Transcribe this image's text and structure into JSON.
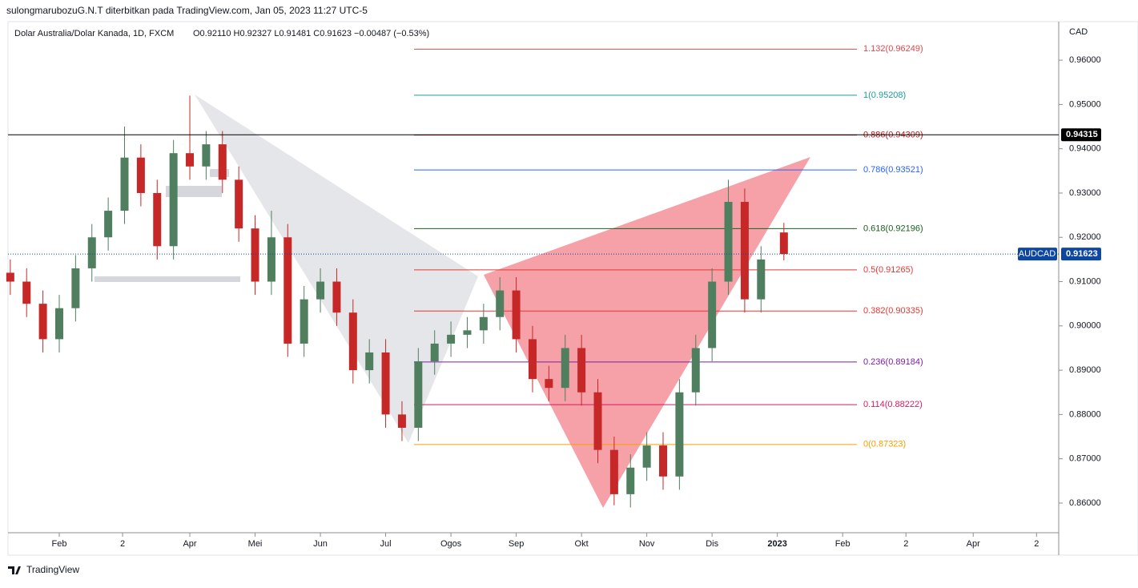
{
  "header": {
    "publisher": "sulongmarubozuG.N.T diterbitkan pada TradingView.com, Jan 05, 2023 11:27 UTC-5",
    "brand": "TradingView"
  },
  "chart_data": {
    "type": "candlestick",
    "symbol_title": "Dolar Australia/Dolar Kanada, 1D, FXCM",
    "ohlc_legend": "O0.92110 H0.92327 L0.91481 C0.91623 −0.00487 (−0.53%)",
    "currency": "CAD",
    "up_color": "#4f7f5f",
    "down_color": "#c62828",
    "ylim": [
      0.8533,
      0.9687
    ],
    "yticks": [
      {
        "value": 0.86,
        "label": "0.86000"
      },
      {
        "value": 0.87,
        "label": "0.87000"
      },
      {
        "value": 0.88,
        "label": "0.88000"
      },
      {
        "value": 0.89,
        "label": "0.89000"
      },
      {
        "value": 0.9,
        "label": "0.90000"
      },
      {
        "value": 0.91,
        "label": "0.91000"
      },
      {
        "value": 0.92,
        "label": "0.92000"
      },
      {
        "value": 0.93,
        "label": "0.93000"
      },
      {
        "value": 0.94,
        "label": "0.94000"
      },
      {
        "value": 0.95,
        "label": "0.95000"
      },
      {
        "value": 0.96,
        "label": "0.96000"
      }
    ],
    "xlim": [
      0.215,
      16.31
    ],
    "xticks": [
      {
        "value": 1,
        "label": "Feb"
      },
      {
        "value": 1.97,
        "label": "2"
      },
      {
        "value": 3,
        "label": "Apr"
      },
      {
        "value": 4,
        "label": "Mei"
      },
      {
        "value": 5,
        "label": "Jun"
      },
      {
        "value": 6,
        "label": "Jul"
      },
      {
        "value": 7,
        "label": "Ogos"
      },
      {
        "value": 8,
        "label": "Sep"
      },
      {
        "value": 9,
        "label": "Okt"
      },
      {
        "value": 10,
        "label": "Nov"
      },
      {
        "value": 11,
        "label": "Dis"
      },
      {
        "value": 12,
        "label": "2023"
      },
      {
        "value": 13,
        "label": "Feb"
      },
      {
        "value": 13.97,
        "label": "2"
      },
      {
        "value": 15,
        "label": "Apr"
      },
      {
        "value": 15.97,
        "label": "2"
      }
    ],
    "candles": {
      "x": [
        0.25,
        0.5,
        0.75,
        1,
        1.25,
        1.5,
        1.75,
        2,
        2.25,
        2.5,
        2.75,
        3,
        3.25,
        3.5,
        3.75,
        4,
        4.25,
        4.5,
        4.75,
        5,
        5.25,
        5.5,
        5.75,
        6,
        6.25,
        6.5,
        6.75,
        7,
        7.25,
        7.5,
        7.75,
        8,
        8.25,
        8.5,
        8.75,
        9,
        9.25,
        9.5,
        9.75,
        10,
        10.25,
        10.5,
        10.75,
        11,
        11.25,
        11.5,
        11.75,
        12.1
      ],
      "open": [
        0.912,
        0.91,
        0.905,
        0.897,
        0.904,
        0.913,
        0.92,
        0.926,
        0.938,
        0.93,
        0.918,
        0.939,
        0.936,
        0.941,
        0.933,
        0.922,
        0.91,
        0.92,
        0.896,
        0.906,
        0.91,
        0.903,
        0.89,
        0.894,
        0.88,
        0.877,
        0.892,
        0.896,
        0.898,
        0.899,
        0.902,
        0.908,
        0.897,
        0.888,
        0.886,
        0.895,
        0.885,
        0.872,
        0.862,
        0.868,
        0.873,
        0.866,
        0.885,
        0.895,
        0.91,
        0.928,
        0.906,
        0.9211
      ],
      "high": [
        0.915,
        0.913,
        0.908,
        0.907,
        0.916,
        0.923,
        0.929,
        0.945,
        0.941,
        0.933,
        0.942,
        0.952,
        0.944,
        0.944,
        0.936,
        0.925,
        0.926,
        0.923,
        0.909,
        0.913,
        0.913,
        0.906,
        0.897,
        0.897,
        0.883,
        0.895,
        0.899,
        0.901,
        0.902,
        0.905,
        0.911,
        0.911,
        0.9,
        0.891,
        0.898,
        0.898,
        0.888,
        0.875,
        0.871,
        0.876,
        0.876,
        0.888,
        0.898,
        0.913,
        0.933,
        0.931,
        0.918,
        0.92327
      ],
      "low": [
        0.907,
        0.902,
        0.894,
        0.894,
        0.901,
        0.91,
        0.917,
        0.923,
        0.927,
        0.915,
        0.915,
        0.933,
        0.933,
        0.93,
        0.919,
        0.907,
        0.907,
        0.893,
        0.893,
        0.903,
        0.9,
        0.887,
        0.887,
        0.877,
        0.874,
        0.874,
        0.889,
        0.893,
        0.895,
        0.896,
        0.899,
        0.894,
        0.885,
        0.883,
        0.883,
        0.882,
        0.869,
        0.8595,
        0.859,
        0.865,
        0.863,
        0.863,
        0.882,
        0.892,
        0.907,
        0.903,
        0.903,
        0.91481
      ],
      "close": [
        0.91,
        0.905,
        0.897,
        0.904,
        0.913,
        0.92,
        0.926,
        0.938,
        0.93,
        0.918,
        0.939,
        0.936,
        0.941,
        0.933,
        0.922,
        0.91,
        0.92,
        0.896,
        0.906,
        0.91,
        0.903,
        0.89,
        0.894,
        0.88,
        0.877,
        0.892,
        0.896,
        0.898,
        0.899,
        0.902,
        0.908,
        0.897,
        0.888,
        0.886,
        0.895,
        0.885,
        0.872,
        0.862,
        0.868,
        0.873,
        0.866,
        0.885,
        0.895,
        0.91,
        0.928,
        0.906,
        0.915,
        0.91623
      ]
    },
    "fib_levels": [
      {
        "label": "1.132(0.96249)",
        "price": 0.96249,
        "color": "#e0474c"
      },
      {
        "label": "1(0.95208)",
        "price": 0.95208,
        "color": "#1e9aa0"
      },
      {
        "label": "0.886(0.94309)",
        "price": 0.94309,
        "color": "#b71c1c"
      },
      {
        "label": "0.786(0.93521)",
        "price": 0.93521,
        "color": "#2962ff"
      },
      {
        "label": "0.618(0.92196)",
        "price": 0.92196,
        "color": "#1b5e20"
      },
      {
        "label": "0.5(0.91265)",
        "price": 0.91265,
        "color": "#e53935"
      },
      {
        "label": "0.382(0.90335)",
        "price": 0.90335,
        "color": "#e53935"
      },
      {
        "label": "0.236(0.89184)",
        "price": 0.89184,
        "color": "#7b1fa2"
      },
      {
        "label": "0.114(0.88222)",
        "price": 0.88222,
        "color": "#d81b60"
      },
      {
        "label": "0(0.87323)",
        "price": 0.87323,
        "color": "#f59f00"
      }
    ],
    "horizontal_line": {
      "price": 0.94315,
      "color": "#000000"
    },
    "last_price": {
      "symbol": "AUDCAD",
      "price": 0.91623,
      "color": "#0d47a1"
    }
  }
}
